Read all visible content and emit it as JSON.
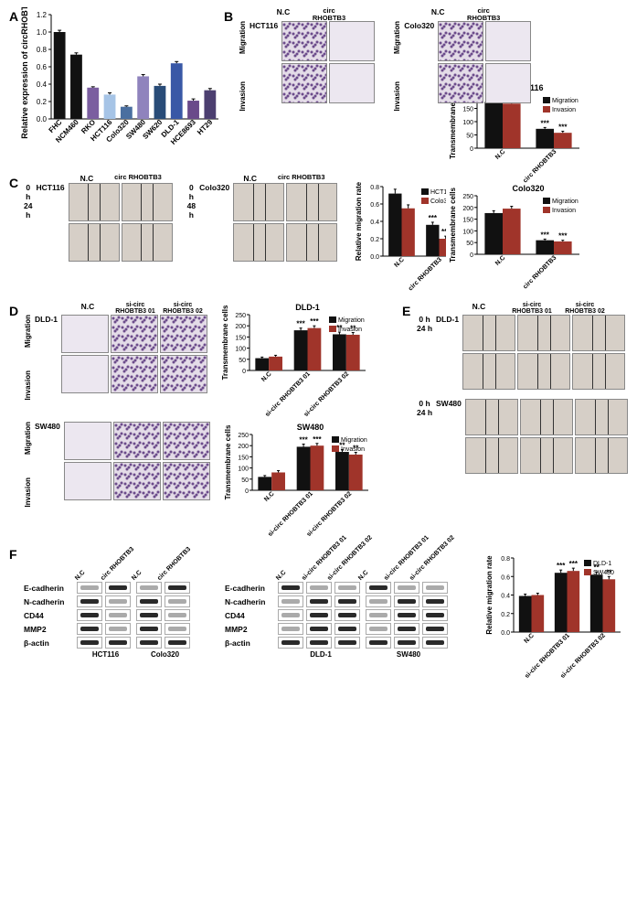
{
  "A": {
    "type": "bar",
    "ylabel": "Relative expression of circRHOBTB3",
    "categories": [
      "FHC",
      "NCM460",
      "RKO",
      "HCT116",
      "Colo320",
      "SW480",
      "SW620",
      "DLD-1",
      "HCE8693",
      "HT29"
    ],
    "values": [
      1.0,
      0.74,
      0.36,
      0.28,
      0.14,
      0.49,
      0.38,
      0.64,
      0.21,
      0.33
    ],
    "errors": [
      0.02,
      0.02,
      0.01,
      0.02,
      0.01,
      0.02,
      0.02,
      0.02,
      0.02,
      0.02
    ],
    "colors": [
      "#111111",
      "#111111",
      "#7b5ea0",
      "#a6c4e6",
      "#4a6fa0",
      "#8f83bd",
      "#294c78",
      "#3958a6",
      "#6a4a8a",
      "#4c3f70"
    ],
    "ylim": [
      0,
      1.2
    ],
    "ytick_step": 0.2,
    "background": "#ffffff",
    "axis_color": "#000000",
    "label_fontsize": 9
  },
  "B": {
    "cells": [
      "HCT116",
      "Colo320"
    ],
    "cols": [
      "N.C",
      "circ RHOBTB3"
    ],
    "rows": [
      "Migration",
      "Invasion"
    ],
    "bar_hct": {
      "title": "HCT116",
      "ylabel": "Transmembrane cells",
      "groups": [
        "N.C",
        "circ RHOBTB3"
      ],
      "series": [
        {
          "name": "Migration",
          "color": "#111111",
          "values": [
            175,
            73
          ],
          "error": [
            10,
            5
          ],
          "sig": [
            "",
            "***"
          ]
        },
        {
          "name": "Invasion",
          "color": "#a0342a",
          "values": [
            168,
            58
          ],
          "error": [
            12,
            6
          ],
          "sig": [
            "",
            "***"
          ]
        }
      ],
      "ylim": [
        0,
        200
      ],
      "ytick_step": 50
    },
    "bar_colo": {
      "title": "Colo320",
      "ylabel": "Transmembrane cells",
      "groups": [
        "N.C",
        "circ RHOBTB3"
      ],
      "series": [
        {
          "name": "Migration",
          "color": "#111111",
          "values": [
            176,
            60
          ],
          "error": [
            10,
            5
          ],
          "sig": [
            "",
            "***"
          ]
        },
        {
          "name": "Invasion",
          "color": "#a0342a",
          "values": [
            195,
            55
          ],
          "error": [
            10,
            5
          ],
          "sig": [
            "",
            "***"
          ]
        }
      ],
      "ylim": [
        0,
        250
      ],
      "ytick_step": 50
    }
  },
  "C": {
    "cells": [
      "HCT116",
      "Colo320"
    ],
    "cols": [
      "N.C",
      "circ RHOBTB3"
    ],
    "rows_hct": [
      "0 h",
      "24 h"
    ],
    "rows_colo": [
      "0 h",
      "48 h"
    ],
    "bar": {
      "ylabel": "Relative migration rate",
      "groups": [
        "N.C",
        "circ RHOBTB3"
      ],
      "series": [
        {
          "name": "HCT116",
          "color": "#111111",
          "values": [
            0.72,
            0.36
          ],
          "error": [
            0.05,
            0.03
          ],
          "sig": [
            "",
            "***"
          ]
        },
        {
          "name": "Colo320",
          "color": "#a0342a",
          "values": [
            0.55,
            0.2
          ],
          "error": [
            0.04,
            0.03
          ],
          "sig": [
            "",
            "***"
          ]
        }
      ],
      "ylim": [
        0,
        0.8
      ],
      "ytick_step": 0.2
    }
  },
  "D": {
    "cells": [
      "DLD-1",
      "SW480"
    ],
    "cols": [
      "N.C",
      "si-circ RHOBTB3 01",
      "si-circ RHOBTB3 02"
    ],
    "rows": [
      "Migration",
      "Invasion"
    ],
    "bar_dld": {
      "title": "DLD-1",
      "ylabel": "Transmembrane cells",
      "groups": [
        "N.C",
        "si-circ RHOBTB3 01",
        "si-circ RHOBTB3 02"
      ],
      "series": [
        {
          "name": "Migration",
          "color": "#111111",
          "values": [
            55,
            180,
            162
          ],
          "error": [
            5,
            10,
            10
          ],
          "sig": [
            "",
            "***",
            "**"
          ]
        },
        {
          "name": "Invasion",
          "color": "#a0342a",
          "values": [
            62,
            190,
            160
          ],
          "error": [
            6,
            10,
            10
          ],
          "sig": [
            "",
            "***",
            "**"
          ]
        }
      ],
      "ylim": [
        0,
        250
      ],
      "ytick_step": 50
    },
    "bar_sw": {
      "title": "SW480",
      "ylabel": "Transmembrane cells",
      "groups": [
        "N.C",
        "si-circ RHOBTB3 01",
        "si-circ RHOBTB3 02"
      ],
      "series": [
        {
          "name": "Migration",
          "color": "#111111",
          "values": [
            60,
            195,
            172
          ],
          "error": [
            6,
            12,
            10
          ],
          "sig": [
            "",
            "***",
            "**"
          ]
        },
        {
          "name": "Invasion",
          "color": "#a0342a",
          "values": [
            80,
            200,
            160
          ],
          "error": [
            8,
            10,
            10
          ],
          "sig": [
            "",
            "***",
            "**"
          ]
        }
      ],
      "ylim": [
        0,
        250
      ],
      "ytick_step": 50
    }
  },
  "E": {
    "cells": [
      "DLD-1",
      "SW480"
    ],
    "cols": [
      "N.C",
      "si-circ RHOBTB3 01",
      "si-circ RHOBTB3 02"
    ],
    "rows": [
      "0 h",
      "24 h"
    ],
    "bar": {
      "ylabel": "Relative migration rate",
      "groups": [
        "N.C",
        "si-circ RHOBTB3 01",
        "si-circ RHOBTB3 02"
      ],
      "series": [
        {
          "name": "DLD-1",
          "color": "#111111",
          "values": [
            0.39,
            0.64,
            0.62
          ],
          "error": [
            0.02,
            0.03,
            0.03
          ],
          "sig": [
            "",
            "***",
            "**"
          ]
        },
        {
          "name": "SW480",
          "color": "#a0342a",
          "values": [
            0.4,
            0.66,
            0.57
          ],
          "error": [
            0.02,
            0.03,
            0.03
          ],
          "sig": [
            "",
            "***",
            "**"
          ]
        }
      ],
      "ylim": [
        0,
        0.8
      ],
      "ytick_step": 0.2
    }
  },
  "F": {
    "proteins": [
      "E-cadherin",
      "N-cadherin",
      "CD44",
      "MMP2",
      "β-actin"
    ],
    "left": {
      "cells": [
        "HCT116",
        "Colo320"
      ],
      "cols": [
        "N.C",
        "circ RHOBTB3"
      ],
      "bands": {
        "E-cadherin": [
          [
            "light",
            "dark"
          ],
          [
            "light",
            "dark"
          ]
        ],
        "N-cadherin": [
          [
            "dark",
            "light"
          ],
          [
            "dark",
            "light"
          ]
        ],
        "CD44": [
          [
            "dark",
            "light"
          ],
          [
            "dark",
            "light"
          ]
        ],
        "MMP2": [
          [
            "dark",
            "light"
          ],
          [
            "dark",
            "light"
          ]
        ],
        "β-actin": [
          [
            "dark",
            "dark"
          ],
          [
            "dark",
            "dark"
          ]
        ]
      }
    },
    "right": {
      "cells": [
        "DLD-1",
        "SW480"
      ],
      "cols": [
        "N.C",
        "si-circ RHOBTB3 01",
        "si-circ RHOBTB3 02"
      ],
      "bands": {
        "E-cadherin": [
          [
            "dark",
            "light",
            "light"
          ],
          [
            "dark",
            "light",
            "light"
          ]
        ],
        "N-cadherin": [
          [
            "light",
            "dark",
            "dark"
          ],
          [
            "light",
            "dark",
            "dark"
          ]
        ],
        "CD44": [
          [
            "light",
            "dark",
            "dark"
          ],
          [
            "light",
            "dark",
            "dark"
          ]
        ],
        "MMP2": [
          [
            "light",
            "dark",
            "dark"
          ],
          [
            "light",
            "dark",
            "dark"
          ]
        ],
        "β-actin": [
          [
            "dark",
            "dark",
            "dark"
          ],
          [
            "dark",
            "dark",
            "dark"
          ]
        ]
      }
    }
  }
}
